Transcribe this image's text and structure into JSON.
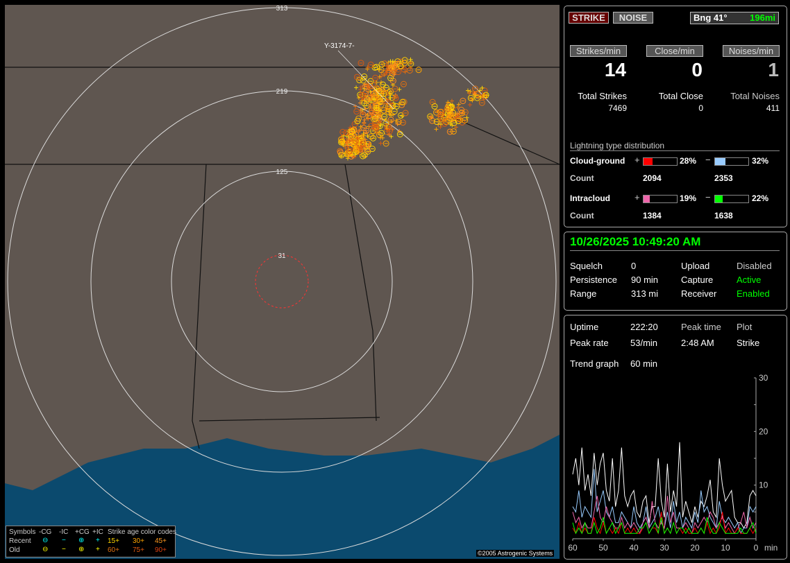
{
  "map": {
    "range_labels": [
      "313",
      "219",
      "125",
      "31"
    ],
    "callout": "Y-3174-7-",
    "copyright": "©2005 Astrogenic Systems",
    "legend": {
      "symbols": "Symbols",
      "cols": [
        "-CG",
        "-IC",
        "+CG",
        "+IC"
      ],
      "recent": "Recent",
      "old": "Old",
      "recent_syms": [
        "⊖",
        "−",
        "⊕",
        "+"
      ],
      "old_syms": [
        "⊖",
        "−",
        "⊕",
        "+"
      ],
      "age_title": "Strike age color codes",
      "ages_recent": [
        "15+",
        "30+",
        "45+"
      ],
      "ages_old": [
        "60+",
        "75+",
        "90+"
      ],
      "age_colors": [
        "#ffd700",
        "#ffa500",
        "#ff9a20",
        "#e07010",
        "#e05a10",
        "#d84010"
      ]
    }
  },
  "top": {
    "strike_btn": "STRIKE",
    "noise_btn": "NOISE",
    "bearing": "Bng 41°",
    "distance": "196mi",
    "rates": [
      {
        "label": "Strikes/min",
        "value": "14",
        "total_label": "Total Strikes",
        "total": "7469"
      },
      {
        "label": "Close/min",
        "value": "0",
        "total_label": "Total Close",
        "total": "0"
      },
      {
        "label": "Noises/min",
        "value": "1",
        "total_label": "Total Noises",
        "total": "411"
      }
    ],
    "dist_title": "Lightning type distribution",
    "cg": {
      "label": "Cloud-ground",
      "pos_pct": 28,
      "pos_text": "28%",
      "neg_pct": 32,
      "neg_text": "32%",
      "count_label": "Count",
      "pos_count": "2094",
      "neg_count": "2353"
    },
    "ic": {
      "label": "Intracloud",
      "pos_pct": 19,
      "pos_text": "19%",
      "neg_pct": 22,
      "neg_text": "22%",
      "count_label": "Count",
      "pos_count": "1384",
      "neg_count": "1638"
    },
    "colors": {
      "cg_pos": "#ff0000",
      "cg_neg": "#99ccff",
      "ic_pos": "#ee66aa",
      "ic_neg": "#00ff00"
    }
  },
  "status": {
    "datetime": "10/26/2025 10:49:20 AM",
    "rows": [
      [
        "Squelch",
        "0",
        "Upload",
        "Disabled"
      ],
      [
        "Persistence",
        "90 min",
        "Capture",
        "Active"
      ],
      [
        "Range",
        "313 mi",
        "Receiver",
        "Enabled"
      ]
    ]
  },
  "stats": {
    "uptime_label": "Uptime",
    "uptime": "222:20",
    "peak_time_label": "Peak time",
    "plot_label": "Plot",
    "peak_rate_label": "Peak rate",
    "peak_rate": "53/min",
    "peak_time": "2:48 AM",
    "plot": "Strike",
    "trend_label": "Trend graph",
    "trend": "60 min"
  },
  "chart_data": {
    "type": "line",
    "xlabel": "min",
    "x_ticks": [
      "60",
      "50",
      "40",
      "30",
      "20",
      "10",
      "0"
    ],
    "y_ticks": [
      "10",
      "20",
      "30"
    ],
    "ylim": [
      0,
      30
    ],
    "xlim": [
      60,
      0
    ],
    "series": [
      {
        "color": "#ffffff",
        "values": [
          12,
          15,
          10,
          17,
          9,
          12,
          8,
          16,
          10,
          14,
          16,
          9,
          7,
          15,
          6,
          9,
          17,
          8,
          6,
          8,
          9,
          5,
          4,
          7,
          8,
          3,
          6,
          6,
          15,
          7,
          4,
          14,
          5,
          9,
          6,
          18,
          4,
          7,
          5,
          3,
          6,
          4,
          7,
          6,
          8,
          11,
          5,
          4,
          15,
          10,
          7,
          8,
          9,
          4,
          3,
          3,
          2,
          3,
          8,
          9,
          8
        ]
      },
      {
        "color": "#99ccff",
        "values": [
          6,
          5,
          9,
          4,
          6,
          5,
          4,
          13,
          5,
          7,
          9,
          5,
          4,
          6,
          3,
          3,
          5,
          4,
          3,
          2,
          6,
          3,
          2,
          3,
          6,
          2,
          3,
          4,
          6,
          3,
          2,
          5,
          2,
          7,
          3,
          5,
          2,
          4,
          3,
          2,
          5,
          3,
          9,
          5,
          6,
          4,
          3,
          2,
          7,
          4,
          3,
          4,
          3,
          2,
          3,
          1,
          2,
          2,
          6,
          5,
          6
        ]
      },
      {
        "color": "#ee66aa",
        "values": [
          5,
          3,
          4,
          2,
          3,
          2,
          2,
          5,
          8,
          4,
          3,
          6,
          4,
          3,
          2,
          2,
          4,
          2,
          3,
          2,
          3,
          2,
          1,
          3,
          4,
          2,
          7,
          3,
          2,
          3,
          2,
          8,
          3,
          5,
          2,
          2,
          2,
          3,
          2,
          1,
          3,
          2,
          3,
          4,
          3,
          5,
          4,
          2,
          3,
          4,
          2,
          3,
          2,
          1,
          2,
          3,
          5,
          2,
          4,
          2,
          3
        ]
      },
      {
        "color": "#ff0000",
        "values": [
          2,
          1,
          3,
          1,
          2,
          1,
          1,
          4,
          2,
          1,
          3,
          1,
          2,
          1,
          2,
          1,
          3,
          1,
          2,
          1,
          2,
          1,
          1,
          2,
          3,
          1,
          2,
          2,
          1,
          5,
          1,
          2,
          1,
          3,
          1,
          2,
          1,
          2,
          1,
          1,
          2,
          1,
          2,
          1,
          3,
          1,
          2,
          1,
          2,
          5,
          1,
          2,
          1,
          1,
          2,
          1,
          1,
          1,
          2,
          1,
          2
        ]
      },
      {
        "color": "#00ff00",
        "values": [
          3,
          1,
          2,
          1,
          3,
          1,
          1,
          3,
          1,
          2,
          4,
          1,
          2,
          3,
          1,
          2,
          3,
          1,
          1,
          1,
          1,
          1,
          2,
          2,
          3,
          1,
          2,
          3,
          1,
          4,
          1,
          2,
          1,
          3,
          1,
          2,
          2,
          1,
          2,
          1,
          1,
          1,
          2,
          1,
          4,
          2,
          1,
          1,
          3,
          2,
          1,
          1,
          1,
          1,
          1,
          2,
          1,
          1,
          2,
          3,
          1
        ]
      }
    ]
  }
}
